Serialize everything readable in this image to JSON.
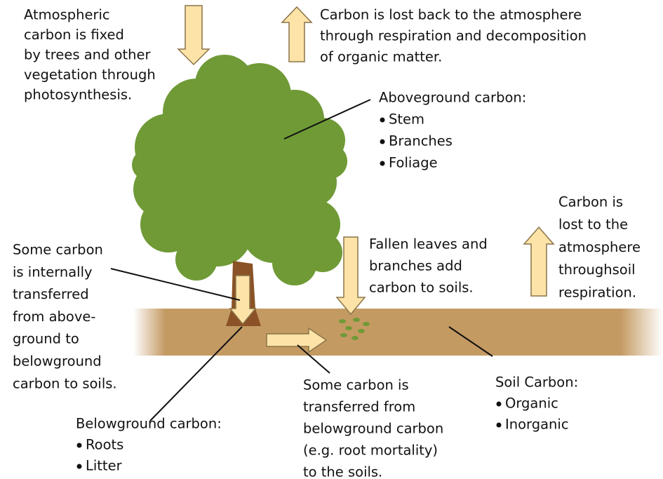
{
  "labels": {
    "fixation": {
      "lines": [
        "Atmospheric",
        "carbon is fixed",
        "by trees and other",
        "vegetation through",
        "photosynthesis."
      ]
    },
    "respiration": {
      "lines": [
        "Carbon is lost back to the atmosphere",
        "through respiration and decomposition",
        "of organic matter."
      ]
    },
    "aboveground": {
      "title": "Aboveground carbon:",
      "items": [
        "Stem",
        "Branches",
        "Foliage"
      ]
    },
    "soil_respiration": {
      "lines": [
        "Carbon is",
        "lost to the",
        "atmosphere",
        "throughsoil",
        "respiration."
      ]
    },
    "fallen": {
      "lines": [
        "Fallen leaves and",
        "branches add",
        "carbon to soils."
      ]
    },
    "internal": {
      "lines": [
        "Some carbon",
        "is internally",
        "transferred",
        "from above-",
        "ground to",
        "belowground",
        "carbon to soils."
      ]
    },
    "belowground": {
      "title": "Belowground carbon:",
      "items": [
        "Roots",
        "Litter"
      ]
    },
    "transfer": {
      "lines": [
        "Some carbon is",
        "transferred from",
        "belowground carbon",
        "(e.g. root mortality)",
        "to the soils."
      ]
    },
    "soil_carbon": {
      "title": "Soil Carbon:",
      "items": [
        "Organic",
        "Inorganic"
      ]
    }
  }
}
